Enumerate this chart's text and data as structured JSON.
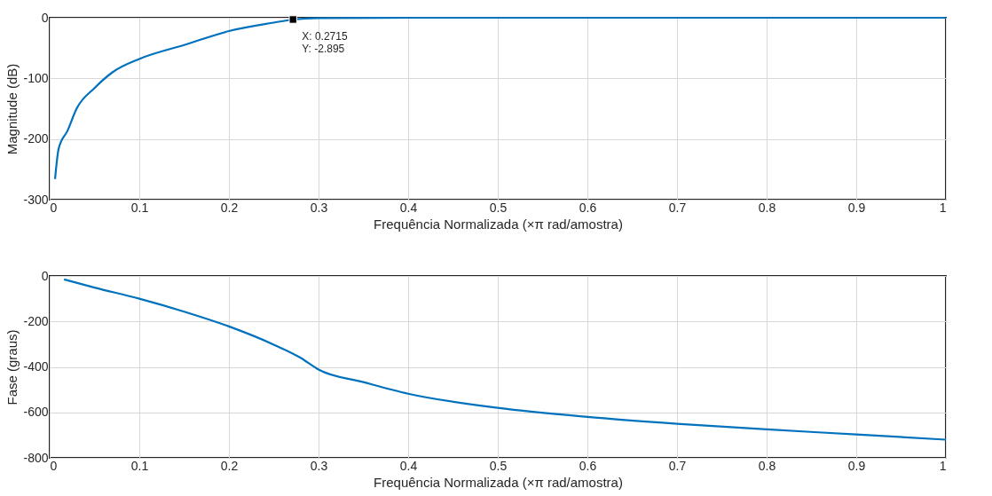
{
  "chart_data": [
    {
      "type": "line",
      "xlabel": "Frequência Normalizada  (×π rad/amostra)",
      "ylabel": "Magnitude (dB)",
      "xlim": [
        0,
        1
      ],
      "ylim": [
        -300,
        0
      ],
      "xticks": [
        0,
        0.1,
        0.2,
        0.3,
        0.4,
        0.5,
        0.6,
        0.7,
        0.8,
        0.9,
        1
      ],
      "yticks": [
        -300,
        -200,
        -100,
        0
      ],
      "grid": true,
      "marker": "none",
      "annotations": [
        {
          "text": "X: 0.2715\nY: -2.895",
          "x": 0.2715,
          "y": -2.895
        }
      ],
      "series": [
        {
          "color": "#0072bd",
          "x": [
            0.006,
            0.01,
            0.02,
            0.03,
            0.05,
            0.07,
            0.1,
            0.15,
            0.2,
            0.25,
            0.2715,
            0.3,
            0.4,
            0.5,
            0.6,
            0.7,
            0.8,
            0.9,
            1.0
          ],
          "values": [
            -266,
            -216,
            -186,
            -150,
            -116,
            -90,
            -68,
            -45,
            -22,
            -8,
            -2.895,
            -0.5,
            0,
            0,
            0,
            0,
            0,
            0,
            0
          ]
        }
      ]
    },
    {
      "type": "line",
      "xlabel": "Frequência Normalizada  (×π rad/amostra)",
      "ylabel": "Fase (graus)",
      "xlim": [
        0,
        1
      ],
      "ylim": [
        -800,
        0
      ],
      "xticks": [
        0,
        0.1,
        0.2,
        0.3,
        0.4,
        0.5,
        0.6,
        0.7,
        0.8,
        0.9,
        1
      ],
      "yticks": [
        -800,
        -600,
        -400,
        -200,
        0
      ],
      "grid": true,
      "marker": "none",
      "series": [
        {
          "color": "#0072bd",
          "x": [
            0.016,
            0.05,
            0.1,
            0.15,
            0.2,
            0.25,
            0.28,
            0.3,
            0.35,
            0.4,
            0.5,
            0.6,
            0.7,
            0.8,
            0.9,
            1.0
          ],
          "values": [
            -15,
            -51,
            -100,
            -157,
            -222,
            -302,
            -360,
            -412,
            -467,
            -518,
            -580,
            -620,
            -650,
            -675,
            -697,
            -720
          ]
        }
      ]
    }
  ]
}
